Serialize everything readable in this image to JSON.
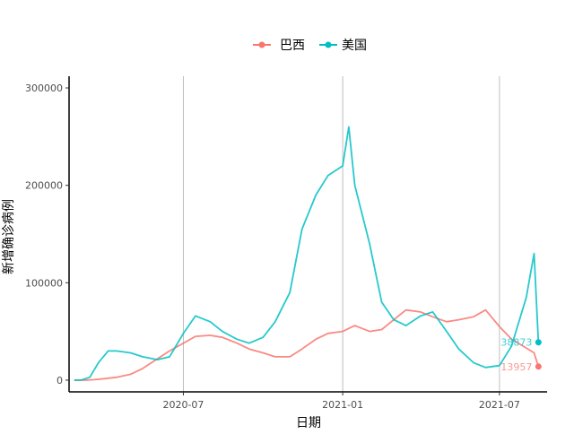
{
  "chart_data": {
    "type": "line",
    "title": "",
    "xlabel": "日期",
    "ylabel": "新增确诊病例",
    "x_axis": {
      "type": "date",
      "range": [
        "2020-02-20",
        "2021-08-25"
      ],
      "ticks": [
        {
          "date": "2020-07-01",
          "label": "2020-07"
        },
        {
          "date": "2021-01-01",
          "label": "2021-01"
        },
        {
          "date": "2021-07-01",
          "label": "2021-07"
        }
      ]
    },
    "y_axis": {
      "range": [
        -12000,
        312000
      ],
      "ticks": [
        {
          "value": 0,
          "label": "0"
        },
        {
          "value": 100000,
          "label": "100000"
        },
        {
          "value": 200000,
          "label": "200000"
        },
        {
          "value": 300000,
          "label": "300000"
        }
      ]
    },
    "grid": "vertical-major-only",
    "legend": {
      "position": "top",
      "entries": [
        "巴西",
        "美国"
      ]
    },
    "series": [
      {
        "name": "巴西",
        "color": "#F8766D",
        "end_label": "13957",
        "points": [
          [
            "2020-02-26",
            0
          ],
          [
            "2020-03-10",
            0
          ],
          [
            "2020-03-20",
            500
          ],
          [
            "2020-04-01",
            1500
          ],
          [
            "2020-04-15",
            3000
          ],
          [
            "2020-05-01",
            6000
          ],
          [
            "2020-05-15",
            12000
          ],
          [
            "2020-06-01",
            22000
          ],
          [
            "2020-06-15",
            30000
          ],
          [
            "2020-07-01",
            38000
          ],
          [
            "2020-07-15",
            45000
          ],
          [
            "2020-08-01",
            46000
          ],
          [
            "2020-08-15",
            44000
          ],
          [
            "2020-09-01",
            38000
          ],
          [
            "2020-09-15",
            32000
          ],
          [
            "2020-10-01",
            28000
          ],
          [
            "2020-10-15",
            24000
          ],
          [
            "2020-11-01",
            24000
          ],
          [
            "2020-11-15",
            32000
          ],
          [
            "2020-12-01",
            42000
          ],
          [
            "2020-12-15",
            48000
          ],
          [
            "2021-01-01",
            50000
          ],
          [
            "2021-01-15",
            56000
          ],
          [
            "2021-02-01",
            50000
          ],
          [
            "2021-02-15",
            52000
          ],
          [
            "2021-03-01",
            62000
          ],
          [
            "2021-03-15",
            72000
          ],
          [
            "2021-04-01",
            70000
          ],
          [
            "2021-04-15",
            65000
          ],
          [
            "2021-05-01",
            60000
          ],
          [
            "2021-05-15",
            62000
          ],
          [
            "2021-06-01",
            65000
          ],
          [
            "2021-06-15",
            72000
          ],
          [
            "2021-07-01",
            55000
          ],
          [
            "2021-07-15",
            42000
          ],
          [
            "2021-08-01",
            33000
          ],
          [
            "2021-08-10",
            28000
          ],
          [
            "2021-08-15",
            13957
          ]
        ]
      },
      {
        "name": "美国",
        "color": "#00BFC4",
        "end_label": "38873",
        "points": [
          [
            "2020-02-26",
            0
          ],
          [
            "2020-03-05",
            100
          ],
          [
            "2020-03-15",
            3000
          ],
          [
            "2020-03-25",
            18000
          ],
          [
            "2020-04-05",
            30000
          ],
          [
            "2020-04-15",
            30000
          ],
          [
            "2020-05-01",
            28000
          ],
          [
            "2020-05-15",
            24000
          ],
          [
            "2020-06-01",
            21000
          ],
          [
            "2020-06-15",
            24000
          ],
          [
            "2020-07-01",
            48000
          ],
          [
            "2020-07-15",
            66000
          ],
          [
            "2020-08-01",
            60000
          ],
          [
            "2020-08-15",
            50000
          ],
          [
            "2020-09-01",
            42000
          ],
          [
            "2020-09-15",
            38000
          ],
          [
            "2020-10-01",
            44000
          ],
          [
            "2020-10-15",
            60000
          ],
          [
            "2020-11-01",
            90000
          ],
          [
            "2020-11-15",
            155000
          ],
          [
            "2020-12-01",
            190000
          ],
          [
            "2020-12-15",
            210000
          ],
          [
            "2021-01-01",
            220000
          ],
          [
            "2021-01-08",
            260000
          ],
          [
            "2021-01-15",
            200000
          ],
          [
            "2021-02-01",
            140000
          ],
          [
            "2021-02-15",
            80000
          ],
          [
            "2021-03-01",
            62000
          ],
          [
            "2021-03-15",
            56000
          ],
          [
            "2021-04-01",
            66000
          ],
          [
            "2021-04-15",
            70000
          ],
          [
            "2021-05-01",
            50000
          ],
          [
            "2021-05-15",
            32000
          ],
          [
            "2021-06-01",
            18000
          ],
          [
            "2021-06-15",
            13000
          ],
          [
            "2021-07-01",
            15000
          ],
          [
            "2021-07-15",
            35000
          ],
          [
            "2021-08-01",
            85000
          ],
          [
            "2021-08-10",
            130000
          ],
          [
            "2021-08-15",
            38873
          ]
        ]
      }
    ]
  }
}
